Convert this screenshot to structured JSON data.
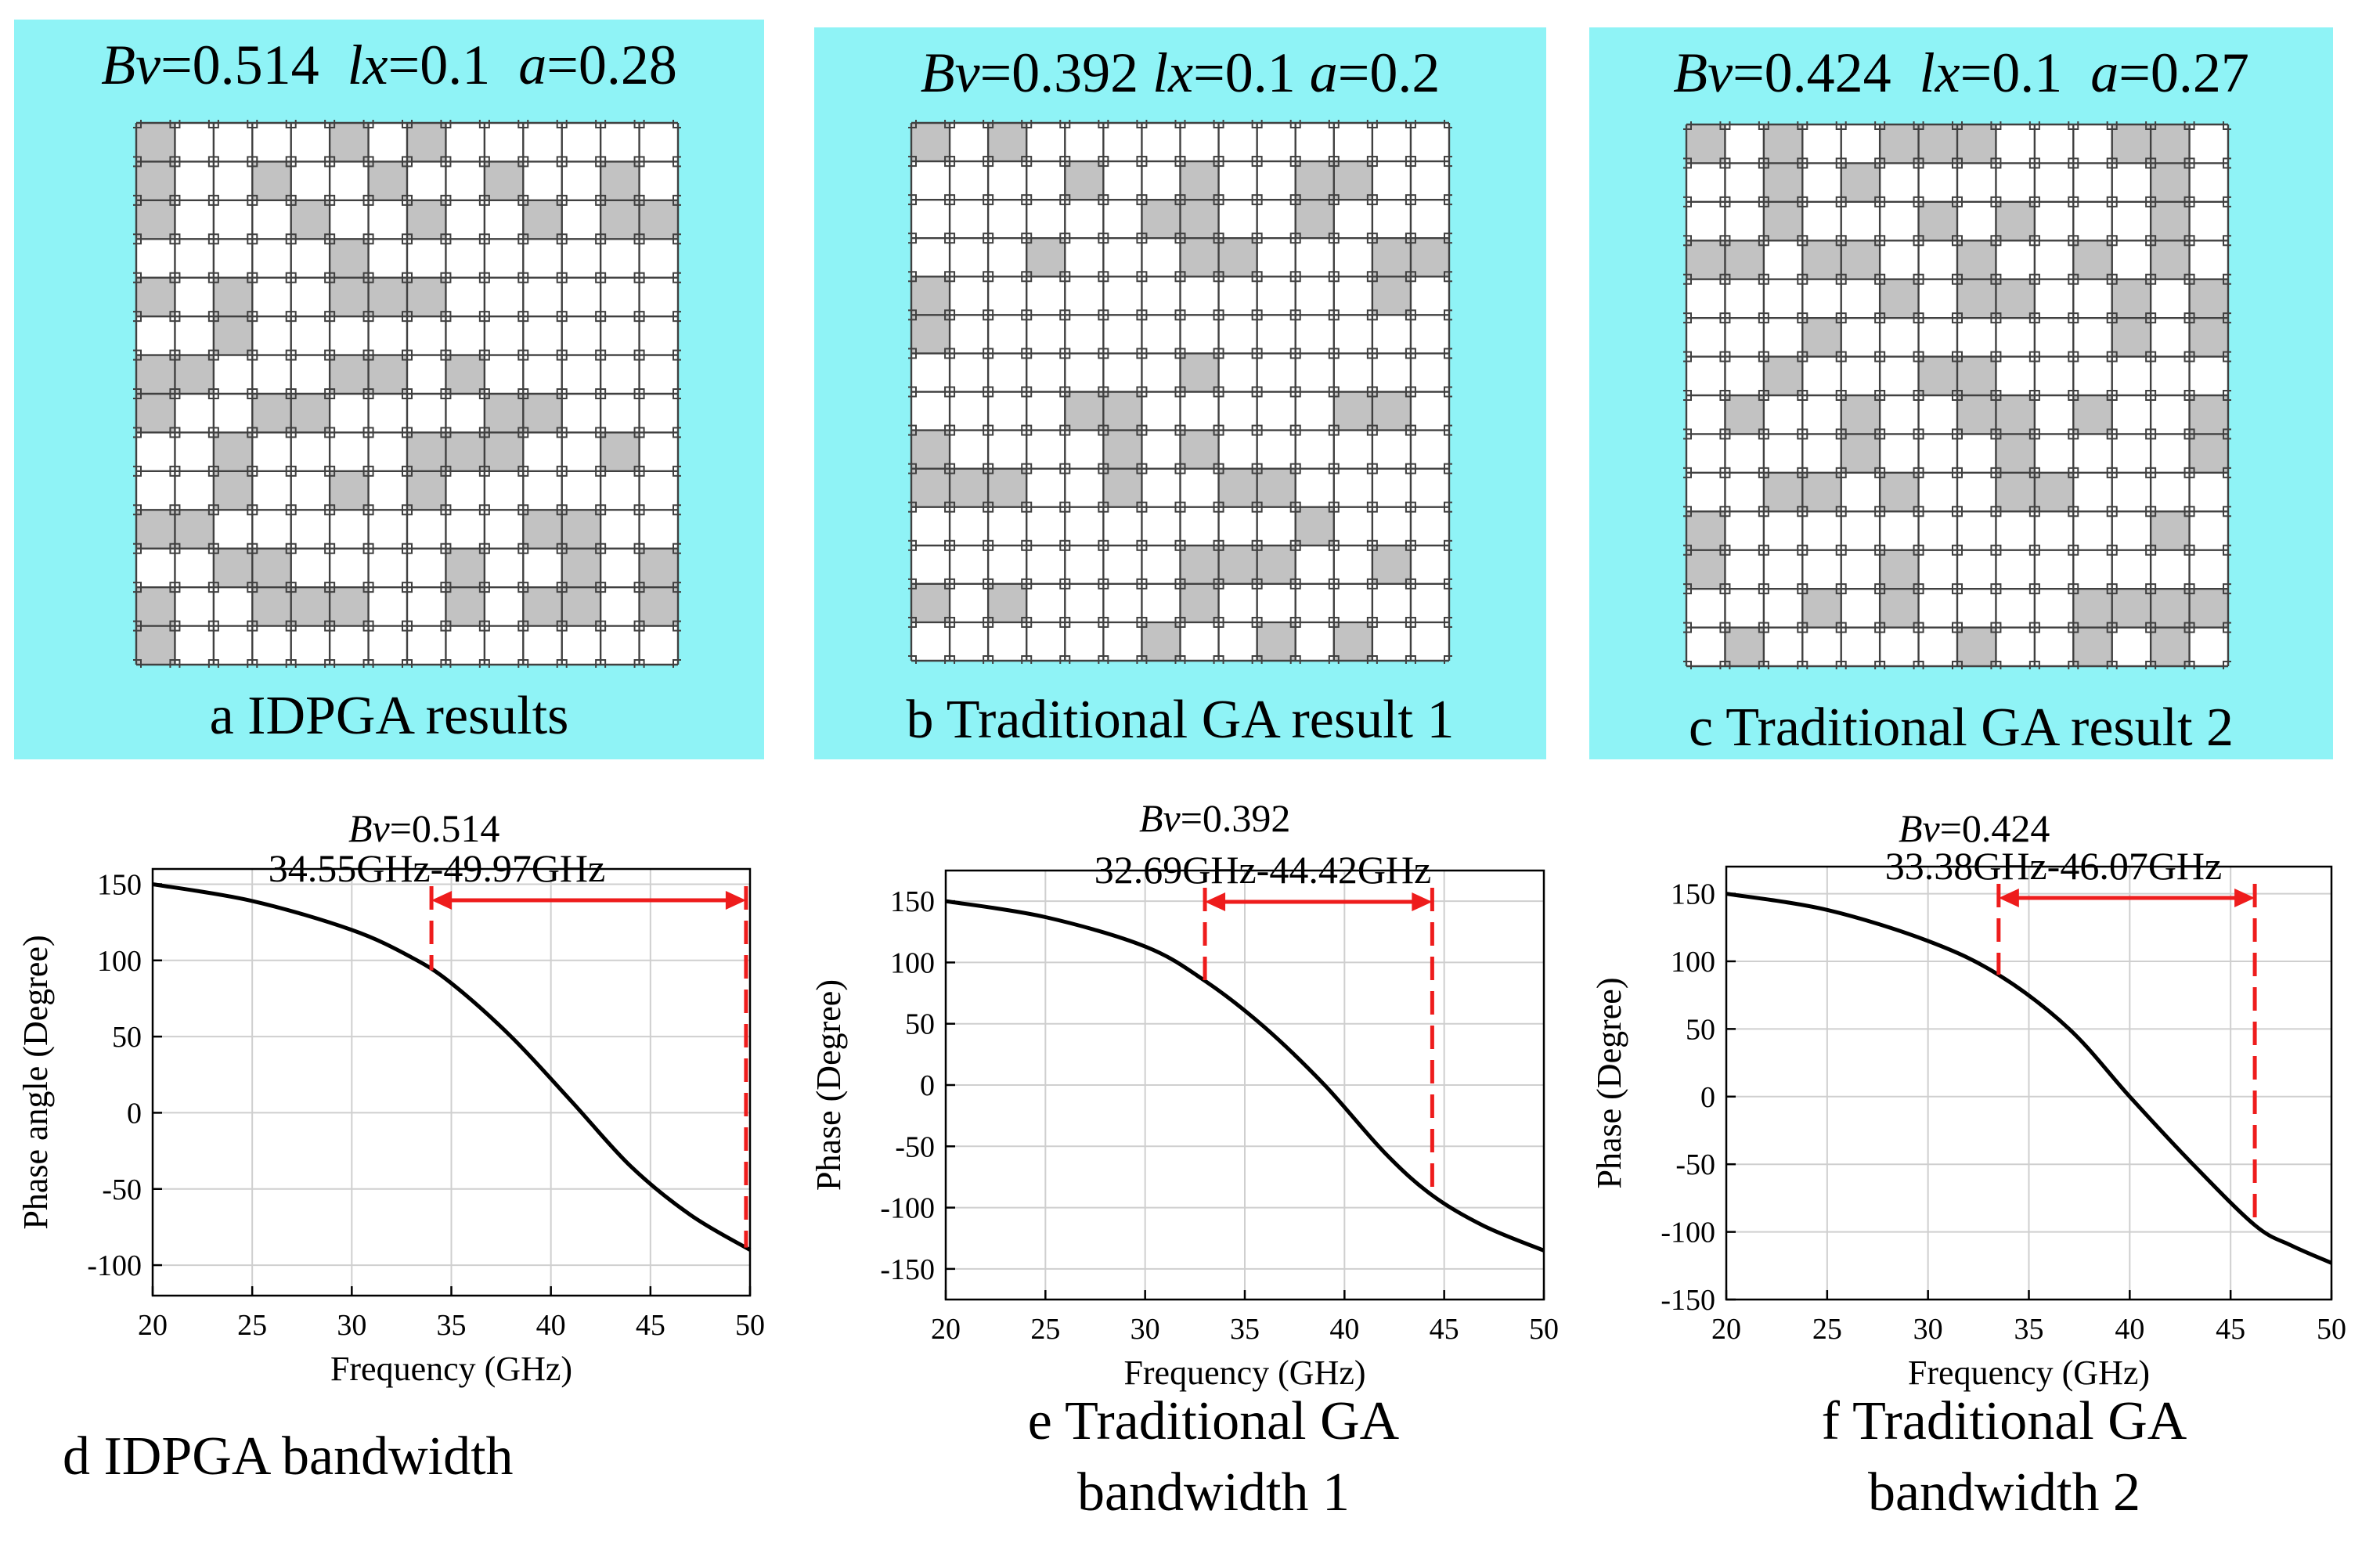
{
  "panels": [
    {
      "id": "a",
      "params": {
        "bv_sym": "Bv",
        "bv": "=0.514",
        "lx_sym": "lx",
        "lx": "=0.1",
        "a_sym": "a",
        "a": "=0.28"
      },
      "caption": "a IDPGA results",
      "grid_size": 14,
      "grid": [
        "10000101000000",
        "10010010010010",
        "10001001001011",
        "00000100000000",
        "10100111000000",
        "00100000000000",
        "11000110100000",
        "10011000011000",
        "00100001110010",
        "00100101000000",
        "11000000001100",
        "00110000100101",
        "10011100101101",
        "10000000000000"
      ]
    },
    {
      "id": "b",
      "params": {
        "bv_sym": "Bv",
        "bv": "=0.392",
        "lx_sym": "lx",
        "lx": "=0.1",
        "a_sym": "a",
        "a": "=0.2"
      },
      "caption": "b Traditional GA result 1",
      "grid_size": 14,
      "grid": [
        "10100000000000",
        "00001001001100",
        "00000011001000",
        "00010001100011",
        "10000000000010",
        "10000000000000",
        "00000001000000",
        "00001100000110",
        "10000101000000",
        "11100100110000",
        "00000000001000",
        "00000001110010",
        "10100001000000",
        "00000010010100"
      ]
    },
    {
      "id": "c",
      "params": {
        "bv_sym": "Bv",
        "bv": "=0.424",
        "lx_sym": "lx",
        "lx": "=0.1",
        "a_sym": "a",
        "a": "=0.27"
      },
      "caption": "c Traditional GA result 2",
      "grid_size": 14,
      "grid": [
        "10100111000110",
        "00101000000010",
        "00100010100010",
        "11011001001010",
        "00000101100101",
        "00010000000101",
        "00100011000000",
        "01001001101001",
        "00001000100001",
        "00110100110000",
        "10000000000010",
        "10000100000000",
        "00010100001111",
        "01000001001010"
      ]
    }
  ],
  "chart_data": [
    {
      "id": "d",
      "type": "line",
      "caption_lines": [
        "d IDPGA bandwidth"
      ],
      "annotation_bv_sym": "Bv",
      "annotation_bv": "=0.514",
      "band_label": "34.55GHz-49.97GHz",
      "xlabel": "Frequency (GHz)",
      "ylabel": "Phase angle (Degree)",
      "xlim": [
        20,
        50
      ],
      "ylim": [
        -120,
        160
      ],
      "xticks": [
        20,
        25,
        30,
        35,
        40,
        45,
        50
      ],
      "xtick_labels": [
        "20",
        "25",
        "30",
        "35",
        "40",
        "45",
        "50"
      ],
      "yticks": [
        150,
        100,
        50,
        0,
        -50,
        -100
      ],
      "ytick_labels": [
        "150",
        "100",
        "50",
        "0",
        "-50",
        "-100"
      ],
      "band": [
        34,
        49.8
      ],
      "series": [
        {
          "name": "phase",
          "x": [
            20,
            25,
            30,
            33,
            35,
            38,
            41,
            44,
            47,
            50
          ],
          "y": [
            150,
            139,
            120,
            102,
            85,
            50,
            8,
            -35,
            -67,
            -90
          ]
        }
      ]
    },
    {
      "id": "e",
      "type": "line",
      "caption_lines": [
        "e Traditional GA",
        "bandwidth 1"
      ],
      "annotation_bv_sym": "Bv",
      "annotation_bv": "=0.392",
      "band_label": "32.69GHz-44.42GHz",
      "xlabel": "Frequency (GHz)",
      "ylabel": "Phase (Degree)",
      "xlim": [
        20,
        50
      ],
      "ylim": [
        -175,
        175
      ],
      "xticks": [
        20,
        25,
        30,
        35,
        40,
        45,
        50
      ],
      "xtick_labels": [
        "20",
        "25",
        "30",
        "35",
        "40",
        "45",
        "50"
      ],
      "yticks": [
        150,
        100,
        50,
        0,
        -50,
        -100,
        -150
      ],
      "ytick_labels": [
        "150",
        "100",
        "50",
        "0",
        "-50",
        "-100",
        "-150"
      ],
      "band": [
        33,
        44.4
      ],
      "series": [
        {
          "name": "phase",
          "x": [
            20,
            25,
            30,
            33,
            36,
            39,
            42,
            44.4,
            47,
            50
          ],
          "y": [
            150,
            137,
            113,
            85,
            47,
            0,
            -55,
            -90,
            -115,
            -135
          ]
        }
      ]
    },
    {
      "id": "f",
      "type": "line",
      "caption_lines": [
        "f Traditional GA",
        "bandwidth 2"
      ],
      "annotation_bv_sym": "Bv",
      "annotation_bv": "=0.424",
      "band_label": "33.38GHz-46.07GHz",
      "xlabel": "Frequency (GHz)",
      "ylabel": "Phase (Degree)",
      "xlim": [
        20,
        50
      ],
      "ylim": [
        -150,
        170
      ],
      "xticks": [
        20,
        25,
        30,
        35,
        40,
        45,
        50
      ],
      "xtick_labels": [
        "20",
        "25",
        "30",
        "35",
        "40",
        "45",
        "50"
      ],
      "yticks": [
        150,
        100,
        50,
        0,
        -50,
        -100,
        -150
      ],
      "ytick_labels": [
        "150",
        "100",
        "50",
        "0",
        "-50",
        "-100",
        "-150"
      ],
      "band": [
        33.5,
        46.2
      ],
      "series": [
        {
          "name": "phase",
          "x": [
            20,
            25,
            30,
            33.5,
            37,
            40,
            43,
            46.2,
            48,
            50
          ],
          "y": [
            150,
            138,
            115,
            90,
            50,
            0,
            -48,
            -95,
            -110,
            -123
          ]
        }
      ]
    }
  ],
  "colors": {
    "panel_bg": "#8ff3f6",
    "cell_fill": "#c2c2c2",
    "cell_empty": "#ffffff",
    "grid_line": "#404040",
    "curve": "#000000",
    "band": "#ee1c1c"
  }
}
